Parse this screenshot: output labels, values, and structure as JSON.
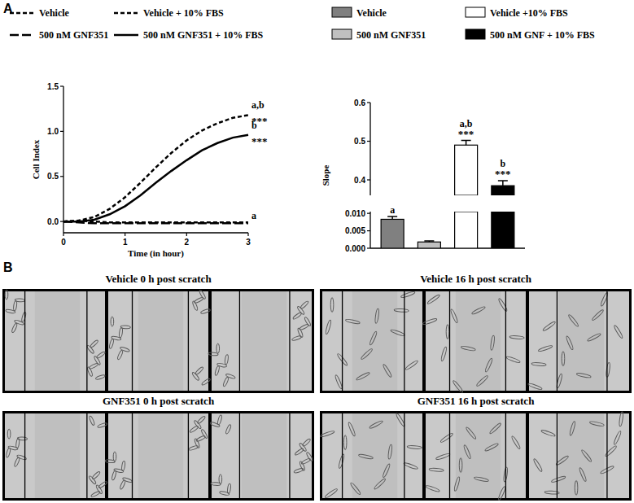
{
  "chart_data": [
    {
      "type": "line",
      "xlabel": "Time (in hour)",
      "ylabel": "Cell Index",
      "x": [
        0,
        0.25,
        0.5,
        0.75,
        1,
        1.25,
        1.5,
        1.75,
        2,
        2.25,
        2.5,
        2.75,
        3
      ],
      "series": [
        {
          "name": "Vehicle",
          "color": "#000000",
          "line_style": "dashed",
          "values": [
            0,
            0.01,
            0,
            -0.01,
            -0.01,
            -0.01,
            -0.01,
            -0.01,
            -0.01,
            -0.01,
            -0.01,
            -0.01,
            -0.01
          ]
        },
        {
          "name": "Vehicle + 10% FBS",
          "color": "#000000",
          "line_style": "dashed",
          "values": [
            0,
            0.01,
            0.05,
            0.14,
            0.27,
            0.43,
            0.6,
            0.76,
            0.9,
            1.01,
            1.09,
            1.15,
            1.18
          ]
        },
        {
          "name": "500 nM GNF351",
          "color": "#000000",
          "line_style": "long_dashed",
          "values": [
            0,
            -0.01,
            -0.02,
            -0.02,
            -0.02,
            -0.02,
            -0.02,
            -0.02,
            -0.02,
            -0.02,
            -0.02,
            -0.02,
            -0.02
          ]
        },
        {
          "name": "500 nM GNF351 + 10% FBS",
          "color": "#000000",
          "line_style": "solid",
          "values": [
            0,
            0,
            0.02,
            0.08,
            0.17,
            0.29,
            0.43,
            0.56,
            0.68,
            0.79,
            0.87,
            0.93,
            0.96
          ]
        }
      ],
      "xlim": [
        0,
        3
      ],
      "xticks": [
        0,
        1,
        2,
        3
      ],
      "ylim": [
        -0.125,
        1.5
      ],
      "yticks": [
        {
          "value": 0,
          "label": "0.0"
        },
        {
          "value": 0.5,
          "label": "0.5"
        },
        {
          "value": 1,
          "label": "1.0"
        },
        {
          "value": 1.5,
          "label": "1.5"
        }
      ],
      "legend": "top",
      "annotations": [
        {
          "series": 1,
          "text": [
            "a,b",
            "***"
          ]
        },
        {
          "series": 3,
          "text": [
            "b",
            "***"
          ]
        },
        {
          "series": 0,
          "text": [
            "a"
          ]
        }
      ]
    },
    {
      "type": "bar",
      "ylabel": "Slope",
      "categories": [
        null,
        null,
        null,
        null
      ],
      "series": [
        {
          "name": "Vehicle",
          "color": "#808080",
          "values": [
            0.0083,
            null,
            null,
            null
          ],
          "errors": [
            0.0008,
            null,
            null,
            null
          ]
        },
        {
          "name": "Vehicle +10% FBS",
          "color": "#ffffff",
          "values": [
            null,
            null,
            0.49,
            null
          ],
          "errors": [
            null,
            null,
            0.012,
            null
          ]
        },
        {
          "name": "500 nM GNF351",
          "color": "#c0c0c0",
          "values": [
            null,
            0.0018,
            null,
            null
          ],
          "errors": [
            null,
            0.0003,
            null,
            null
          ]
        },
        {
          "name": "500 nM GNF + 10% FBS",
          "color": "#000000",
          "values": [
            null,
            null,
            null,
            0.385
          ],
          "errors": [
            null,
            null,
            null,
            0.013
          ]
        }
      ],
      "ylim": [
        0,
        0.6
      ],
      "ybreak": [
        0.0105,
        0.36
      ],
      "yticks": [
        {
          "value": 0,
          "label": "0.000"
        },
        0.005,
        {
          "value": 0.01,
          "label": "0.010"
        },
        0.4,
        0.5,
        0.6
      ],
      "legend": "top",
      "annotations": [
        {
          "bar": 0,
          "text": [
            "a"
          ]
        },
        {
          "bar": 2,
          "text": [
            "a,b",
            "***"
          ]
        },
        {
          "bar": 3,
          "text": [
            "b",
            "***"
          ]
        }
      ]
    }
  ],
  "panel_labels": [
    "A",
    "B"
  ],
  "images": [
    {
      "title": "Vehicle 0 h post scratch"
    },
    {
      "title": "Vehicle 16 h post scratch"
    },
    {
      "title": "GNF351 0 h post scratch"
    },
    {
      "title": "GNF351 16 h post scratch"
    }
  ]
}
